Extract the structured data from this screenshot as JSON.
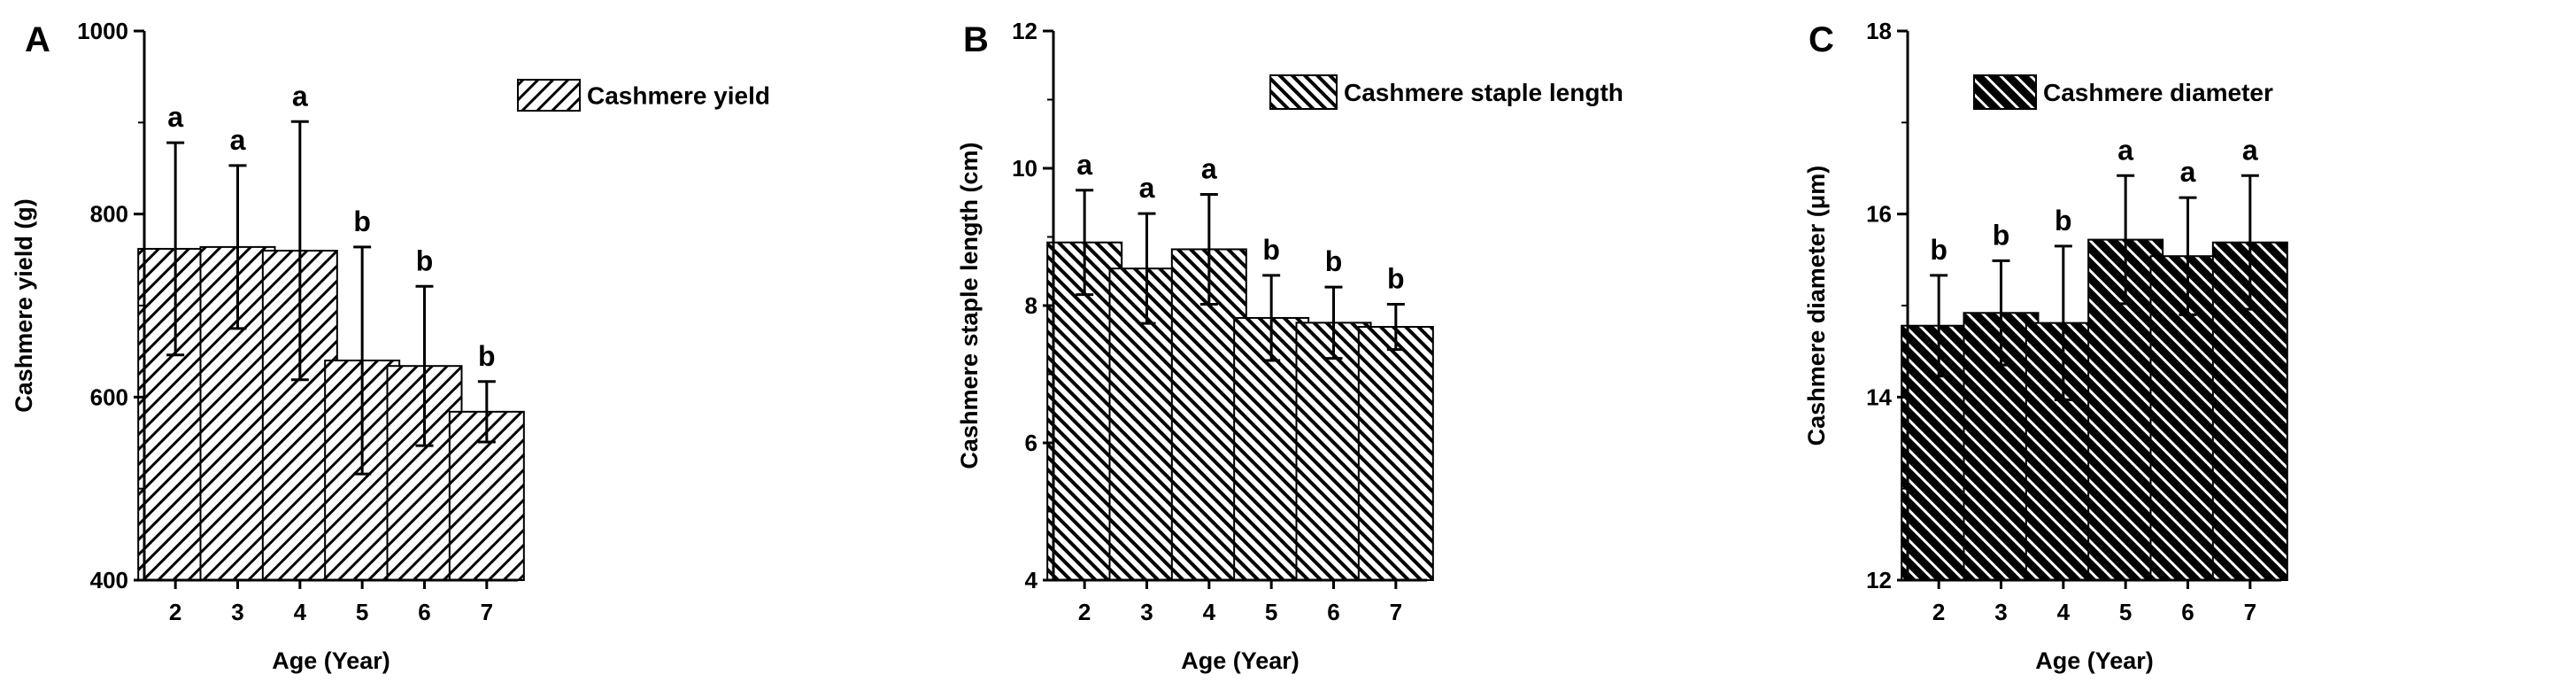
{
  "chart_data": [
    {
      "type": "bar",
      "panel": "A",
      "xlabel": "Age (Year)",
      "ylabel": "Cashmere yield (g)",
      "categories": [
        "2",
        "3",
        "4",
        "5",
        "6",
        "7"
      ],
      "ylim": [
        400,
        1000
      ],
      "yticks": [
        "400",
        "600",
        "800",
        "1000"
      ],
      "series": [
        {
          "name": "Cashmere yield",
          "values": [
            762,
            764,
            760,
            640,
            634,
            584
          ],
          "errors": [
            116,
            89,
            141,
            124,
            87,
            33
          ],
          "significance": [
            "a",
            "a",
            "a",
            "b",
            "b",
            "b"
          ]
        }
      ],
      "legend": "top-right",
      "pattern": "light-diagonal"
    },
    {
      "type": "bar",
      "panel": "B",
      "xlabel": "Age (Year)",
      "ylabel": "Cashmere staple length (cm)",
      "categories": [
        "2",
        "3",
        "4",
        "5",
        "6",
        "7"
      ],
      "ylim": [
        4,
        12
      ],
      "yticks": [
        "4",
        "6",
        "8",
        "10",
        "12"
      ],
      "series": [
        {
          "name": "Cashmere staple length",
          "values": [
            8.92,
            8.54,
            8.82,
            7.82,
            7.75,
            7.69
          ],
          "errors": [
            0.76,
            0.8,
            0.8,
            0.62,
            0.52,
            0.33
          ],
          "significance": [
            "a",
            "a",
            "a",
            "b",
            "b",
            "b"
          ]
        }
      ],
      "legend": "top-right",
      "pattern": "medium-diagonal"
    },
    {
      "type": "bar",
      "panel": "C",
      "xlabel": "Age (Year)",
      "ylabel": "Cashmere diameter (μm)",
      "categories": [
        "2",
        "3",
        "4",
        "5",
        "6",
        "7"
      ],
      "ylim": [
        12,
        18
      ],
      "yticks": [
        "12",
        "14",
        "16",
        "18"
      ],
      "series": [
        {
          "name": "Cashmere diameter",
          "values": [
            14.78,
            14.92,
            14.81,
            15.72,
            15.54,
            15.69
          ],
          "errors": [
            0.55,
            0.57,
            0.84,
            0.7,
            0.64,
            0.73
          ],
          "significance": [
            "b",
            "b",
            "b",
            "a",
            "a",
            "a"
          ]
        }
      ],
      "legend": "top-center",
      "pattern": "dark-diagonal"
    }
  ],
  "colors": {
    "ink": "#000000",
    "background": "#ffffff"
  }
}
